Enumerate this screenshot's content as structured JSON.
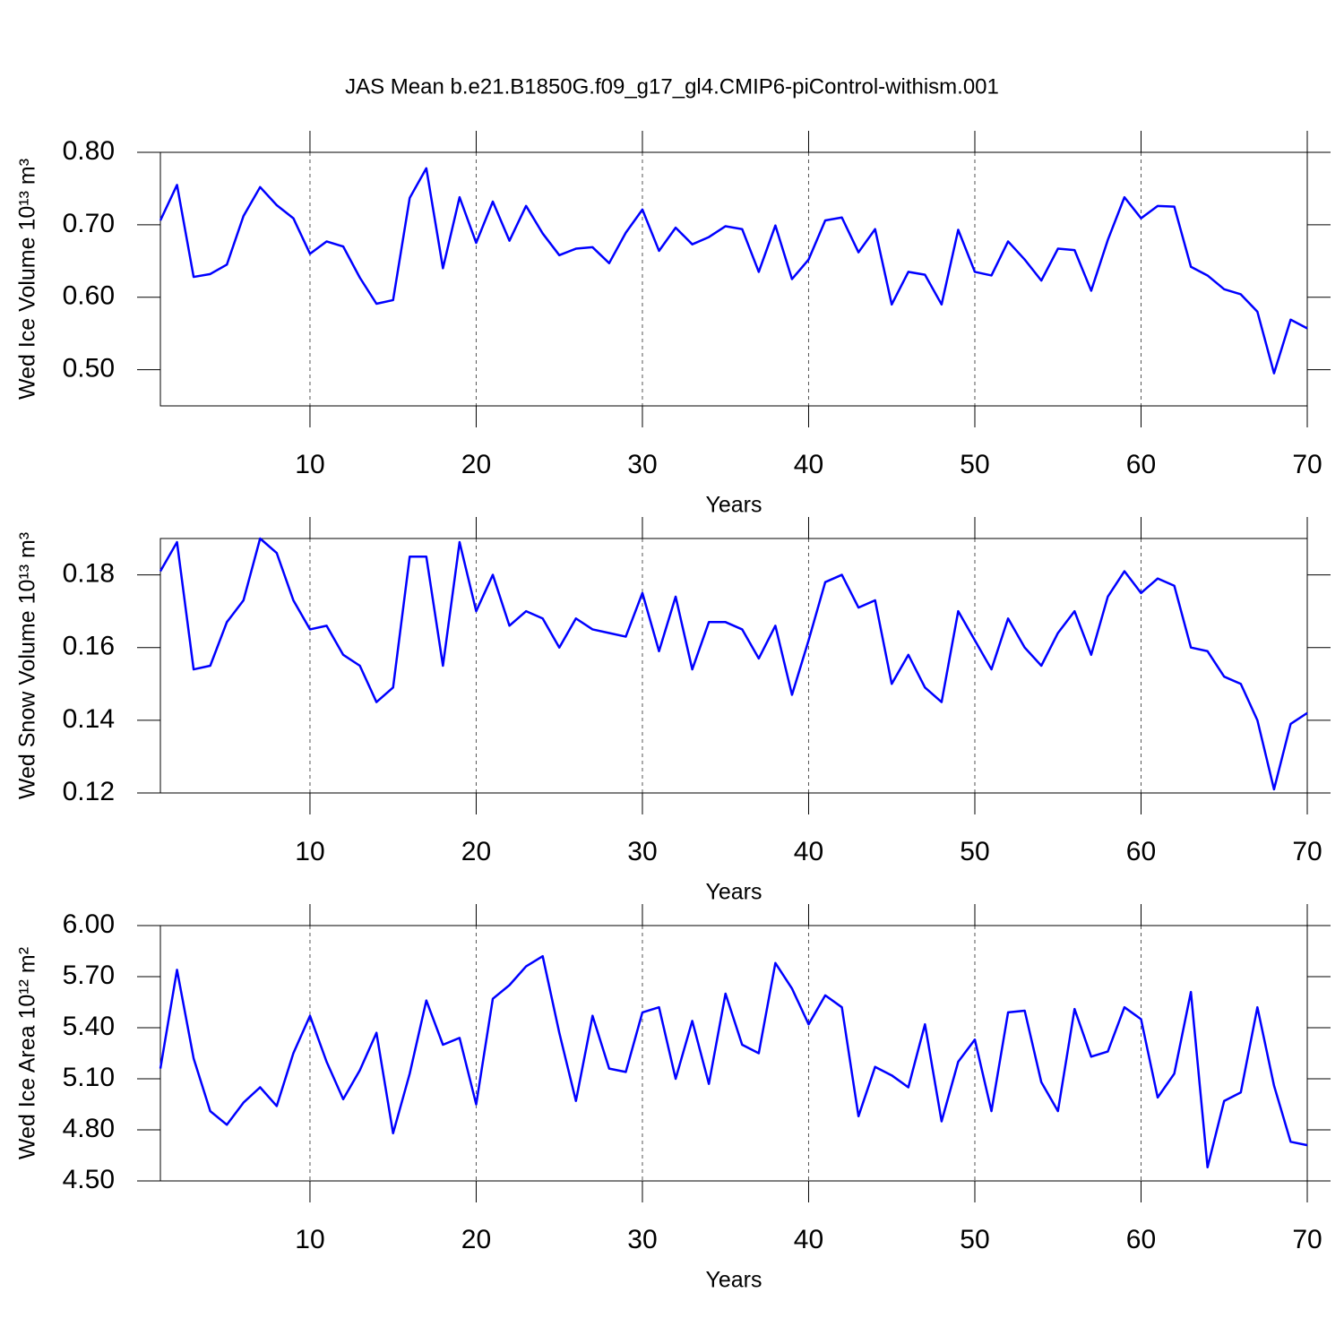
{
  "title": "JAS Mean b.e21.B1850G.f09_g17_gl4.CMIP6-piControl-withism.001",
  "chart_data": [
    {
      "type": "line",
      "ylabel": "Wed Ice Volume 10¹³ m³",
      "xlabel": "Years",
      "color": "#0000ff",
      "grid": true,
      "xlim": [
        1,
        70
      ],
      "xticks": [
        10,
        20,
        30,
        40,
        50,
        60,
        70
      ],
      "ylim": [
        0.45,
        0.8
      ],
      "yticks": [
        {
          "value": 0.5,
          "label": "0.50"
        },
        {
          "value": 0.6,
          "label": "0.60"
        },
        {
          "value": 0.7,
          "label": "0.70"
        },
        {
          "value": 0.8,
          "label": "0.80"
        }
      ],
      "x": [
        1,
        2,
        3,
        4,
        5,
        6,
        7,
        8,
        9,
        10,
        11,
        12,
        13,
        14,
        15,
        16,
        17,
        18,
        19,
        20,
        21,
        22,
        23,
        24,
        25,
        26,
        27,
        28,
        29,
        30,
        31,
        32,
        33,
        34,
        35,
        36,
        37,
        38,
        39,
        40,
        41,
        42,
        43,
        44,
        45,
        46,
        47,
        48,
        49,
        50,
        51,
        52,
        53,
        54,
        55,
        56,
        57,
        58,
        59,
        60,
        61,
        62,
        63,
        64,
        65,
        66,
        67,
        68,
        69,
        70
      ],
      "values": [
        0.706,
        0.755,
        0.628,
        0.632,
        0.645,
        0.712,
        0.752,
        0.727,
        0.709,
        0.66,
        0.677,
        0.67,
        0.627,
        0.591,
        0.596,
        0.737,
        0.778,
        0.64,
        0.738,
        0.675,
        0.732,
        0.678,
        0.726,
        0.688,
        0.658,
        0.667,
        0.669,
        0.647,
        0.689,
        0.721,
        0.664,
        0.696,
        0.673,
        0.683,
        0.698,
        0.694,
        0.635,
        0.699,
        0.625,
        0.652,
        0.706,
        0.71,
        0.662,
        0.694,
        0.59,
        0.635,
        0.631,
        0.59,
        0.693,
        0.635,
        0.63,
        0.677,
        0.652,
        0.623,
        0.667,
        0.665,
        0.609,
        0.679,
        0.738,
        0.709,
        0.726,
        0.725,
        0.642,
        0.63,
        0.611,
        0.604,
        0.58,
        0.495,
        0.569,
        0.557
      ]
    },
    {
      "type": "line",
      "ylabel": "Wed Snow Volume 10¹³ m³",
      "xlabel": "Years",
      "color": "#0000ff",
      "grid": true,
      "xlim": [
        1,
        70
      ],
      "xticks": [
        10,
        20,
        30,
        40,
        50,
        60,
        70
      ],
      "ylim": [
        0.12,
        0.19
      ],
      "yticks": [
        0.12,
        0.14,
        0.16,
        0.18
      ],
      "x": [
        1,
        2,
        3,
        4,
        5,
        6,
        7,
        8,
        9,
        10,
        11,
        12,
        13,
        14,
        15,
        16,
        17,
        18,
        19,
        20,
        21,
        22,
        23,
        24,
        25,
        26,
        27,
        28,
        29,
        30,
        31,
        32,
        33,
        34,
        35,
        36,
        37,
        38,
        39,
        40,
        41,
        42,
        43,
        44,
        45,
        46,
        47,
        48,
        49,
        50,
        51,
        52,
        53,
        54,
        55,
        56,
        57,
        58,
        59,
        60,
        61,
        62,
        63,
        64,
        65,
        66,
        67,
        68,
        69,
        70
      ],
      "values": [
        0.181,
        0.189,
        0.154,
        0.155,
        0.167,
        0.173,
        0.19,
        0.186,
        0.173,
        0.165,
        0.166,
        0.158,
        0.155,
        0.145,
        0.149,
        0.185,
        0.185,
        0.155,
        0.189,
        0.17,
        0.18,
        0.166,
        0.17,
        0.168,
        0.16,
        0.168,
        0.165,
        0.164,
        0.163,
        0.175,
        0.159,
        0.174,
        0.154,
        0.167,
        0.167,
        0.165,
        0.157,
        0.166,
        0.147,
        0.162,
        0.178,
        0.18,
        0.171,
        0.173,
        0.15,
        0.158,
        0.149,
        0.145,
        0.17,
        0.162,
        0.154,
        0.168,
        0.16,
        0.155,
        0.164,
        0.17,
        0.158,
        0.174,
        0.181,
        0.175,
        0.179,
        0.177,
        0.16,
        0.159,
        0.152,
        0.15,
        0.14,
        0.121,
        0.139,
        0.142
      ]
    },
    {
      "type": "line",
      "ylabel": "Wed Ice Area 10¹² m²",
      "xlabel": "Years",
      "color": "#0000ff",
      "grid": true,
      "xlim": [
        1,
        70
      ],
      "xticks": [
        10,
        20,
        30,
        40,
        50,
        60,
        70
      ],
      "ylim": [
        4.5,
        6.0
      ],
      "yticks": [
        {
          "value": 4.5,
          "label": "4.50"
        },
        {
          "value": 4.8,
          "label": "4.80"
        },
        {
          "value": 5.1,
          "label": "5.10"
        },
        {
          "value": 5.4,
          "label": "5.40"
        },
        {
          "value": 5.7,
          "label": "5.70"
        },
        {
          "value": 6.0,
          "label": "6.00"
        }
      ],
      "x": [
        1,
        2,
        3,
        4,
        5,
        6,
        7,
        8,
        9,
        10,
        11,
        12,
        13,
        14,
        15,
        16,
        17,
        18,
        19,
        20,
        21,
        22,
        23,
        24,
        25,
        26,
        27,
        28,
        29,
        30,
        31,
        32,
        33,
        34,
        35,
        36,
        37,
        38,
        39,
        40,
        41,
        42,
        43,
        44,
        45,
        46,
        47,
        48,
        49,
        50,
        51,
        52,
        53,
        54,
        55,
        56,
        57,
        58,
        59,
        60,
        61,
        62,
        63,
        64,
        65,
        66,
        67,
        68,
        69,
        70
      ],
      "values": [
        5.16,
        5.74,
        5.22,
        4.91,
        4.83,
        4.96,
        5.05,
        4.94,
        5.25,
        5.47,
        5.2,
        4.98,
        5.15,
        5.37,
        4.78,
        5.13,
        5.56,
        5.3,
        5.34,
        4.95,
        5.57,
        5.65,
        5.76,
        5.82,
        5.37,
        4.97,
        5.47,
        5.16,
        5.14,
        5.49,
        5.52,
        5.1,
        5.44,
        5.07,
        5.6,
        5.3,
        5.25,
        5.78,
        5.63,
        5.42,
        5.59,
        5.52,
        4.88,
        5.17,
        5.12,
        5.05,
        5.42,
        4.85,
        5.2,
        5.33,
        4.91,
        5.49,
        5.5,
        5.08,
        4.91,
        5.51,
        5.23,
        5.26,
        5.52,
        5.45,
        4.99,
        5.13,
        5.61,
        4.58,
        4.97,
        5.02,
        5.52,
        5.06,
        4.73,
        4.71
      ]
    }
  ]
}
